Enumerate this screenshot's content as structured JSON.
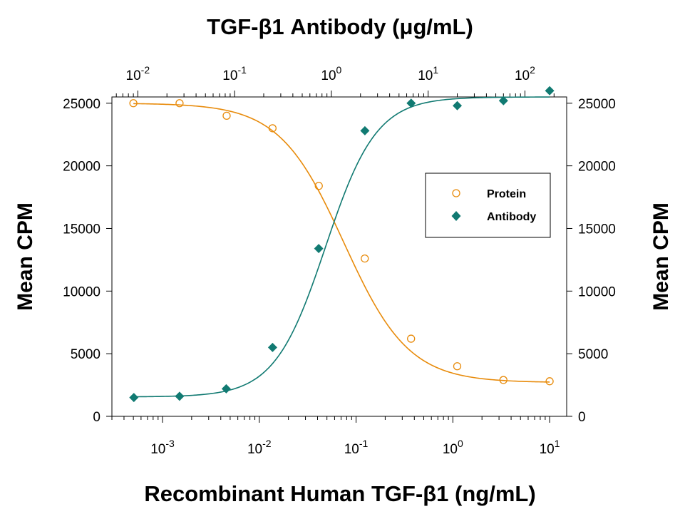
{
  "chart_data": {
    "type": "scatter",
    "title": "TGF-β1 Antibody (μg/mL)",
    "xlabel": "Recombinant Human TGF-β1 (ng/mL)",
    "ylabel": "Mean CPM",
    "ylabel_right": "Mean CPM",
    "x_scale": "log",
    "xlim": [
      0.0003,
      15
    ],
    "x_ticks": [
      {
        "value": 0.001,
        "base": "10",
        "exp": "-3"
      },
      {
        "value": 0.01,
        "base": "10",
        "exp": "-2"
      },
      {
        "value": 0.1,
        "base": "10",
        "exp": "-1"
      },
      {
        "value": 1,
        "base": "10",
        "exp": "0"
      },
      {
        "value": 10,
        "base": "10",
        "exp": "1"
      }
    ],
    "top_axis": {
      "label": "TGF-β1 Antibody (μg/mL)",
      "scale": "log",
      "xlim": [
        0.0054,
        270
      ],
      "ticks": [
        {
          "value": 0.01,
          "base": "10",
          "exp": "-2"
        },
        {
          "value": 0.1,
          "base": "10",
          "exp": "-1"
        },
        {
          "value": 1,
          "base": "10",
          "exp": "0"
        },
        {
          "value": 10,
          "base": "10",
          "exp": "1"
        },
        {
          "value": 100,
          "base": "10",
          "exp": "2"
        }
      ]
    },
    "ylim": [
      0,
      25500
    ],
    "y_ticks": [
      0,
      5000,
      10000,
      15000,
      20000,
      25000
    ],
    "y_ticks_right": [
      0,
      5000,
      10000,
      15000,
      20000,
      25000
    ],
    "legend_position": "right-middle",
    "series": [
      {
        "name": "Protein",
        "marker": "open-circle",
        "color": "#e88b0b",
        "axis": "bottom",
        "x": [
          0.0005,
          0.0015,
          0.0046,
          0.0137,
          0.0412,
          0.123,
          0.37,
          1.11,
          3.33,
          10
        ],
        "y": [
          25000,
          25000,
          24000,
          23000,
          18400,
          12600,
          6200,
          4000,
          2900,
          2800
        ],
        "fit": {
          "model": "4PL",
          "top": 25000,
          "bottom": 2700,
          "ec50": 0.075,
          "hill": 1.3,
          "sign": -1
        }
      },
      {
        "name": "Antibody",
        "marker": "filled-diamond",
        "color": "#117a72",
        "axis": "top",
        "x": [
          0.0091,
          0.027,
          0.082,
          0.247,
          0.74,
          2.22,
          6.67,
          20,
          60,
          180
        ],
        "y": [
          1500,
          1600,
          2200,
          5500,
          13400,
          22800,
          25000,
          24800,
          25200,
          26000
        ],
        "fit": {
          "model": "4PL",
          "top": 25500,
          "bottom": 1550,
          "ec50": 0.87,
          "hill": 1.65,
          "sign": 1
        }
      }
    ]
  }
}
